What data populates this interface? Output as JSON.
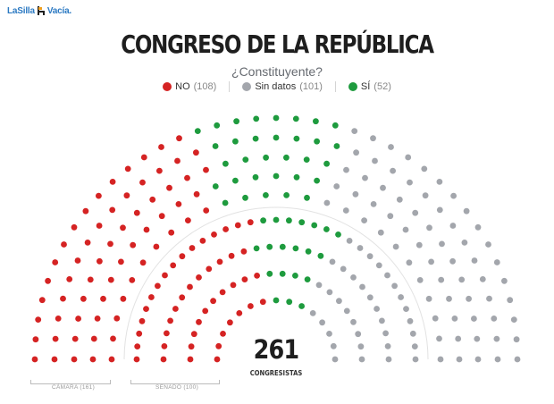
{
  "brand": {
    "logo_text_left": "LaSilla",
    "logo_text_right": "Vacía."
  },
  "title": "CONGRESO DE LA REPÚBLICA",
  "subtitle": "¿Constituyente?",
  "legend": [
    {
      "label": "NO",
      "count": "(108)",
      "color": "#d52323"
    },
    {
      "label": "Sin datos",
      "count": "(101)",
      "color": "#a3a6ac"
    },
    {
      "label": "SÍ",
      "count": "(52)",
      "color": "#1e9b3e"
    }
  ],
  "total": {
    "value": "261",
    "label": "CONGRESISTAS"
  },
  "chambers": {
    "camara": "CÁMARA (161)",
    "senado": "SENADO (100)"
  },
  "chart_data": {
    "type": "hemicycle",
    "total_seats": 261,
    "series": [
      {
        "name": "NO",
        "values": [
          108
        ],
        "color": "#d52323"
      },
      {
        "name": "Sin datos",
        "values": [
          101
        ],
        "color": "#a3a6ac"
      },
      {
        "name": "SÍ",
        "values": [
          52
        ],
        "color": "#1e9b3e"
      }
    ],
    "chambers": [
      {
        "name": "CÁMARA",
        "seats": 161,
        "no": 63,
        "si": 32,
        "sin_datos": 66
      },
      {
        "name": "SENADO",
        "seats": 100,
        "no": 45,
        "si": 20,
        "sin_datos": 35
      }
    ]
  }
}
